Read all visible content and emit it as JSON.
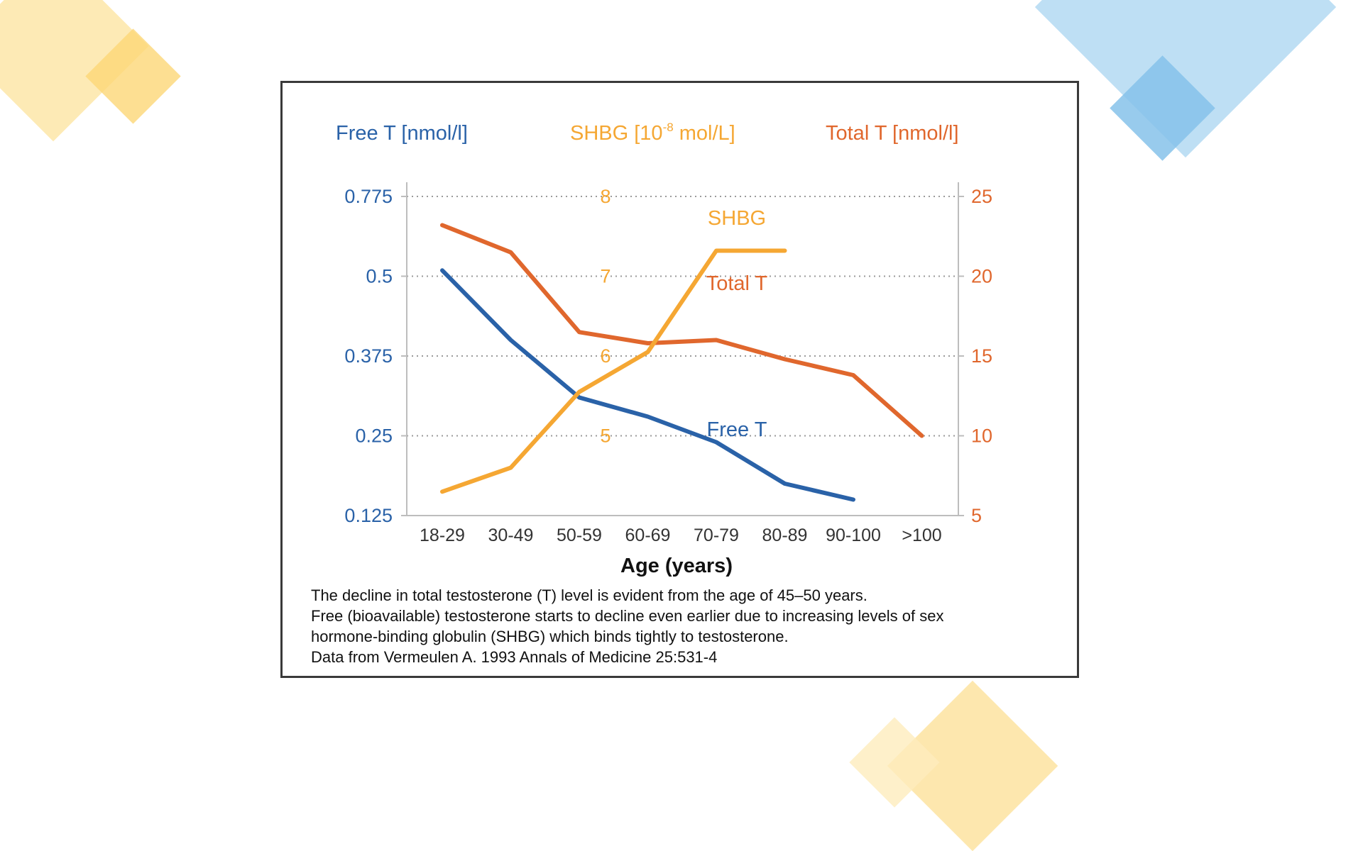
{
  "colors": {
    "free_t": "#2a62a8",
    "shbg": "#f5a733",
    "total_t": "#e0672d",
    "deco_yellow": "#fde3a0",
    "deco_blue": "#a9d3f0"
  },
  "chart_data": {
    "type": "line",
    "categories": [
      "18-29",
      "30-49",
      "50-59",
      "60-69",
      "70-79",
      "80-89",
      "90-100",
      ">100"
    ],
    "xlabel": "Age (years)",
    "axis_headers": {
      "free_t": "Free T [nmol/l]",
      "shbg_prefix": "SHBG [10",
      "shbg_exp": "-8",
      "shbg_suffix": " mol/L]",
      "total_t": "Total T [nmol/l]"
    },
    "left_axis": {
      "ticks": [
        0.125,
        0.25,
        0.375,
        0.5,
        0.775
      ],
      "tick_labels": [
        "0.125",
        "0.25",
        "0.375",
        "0.5",
        "0.775"
      ],
      "note": "ticks are equally spaced on the printed scale"
    },
    "middle_axis": {
      "ticks": [
        5,
        6,
        7,
        8
      ],
      "tick_labels": [
        "5",
        "6",
        "7",
        "8"
      ]
    },
    "right_axis": {
      "ylim": [
        5,
        25
      ],
      "ticks": [
        5,
        10,
        15,
        20,
        25
      ],
      "tick_labels": [
        "5",
        "10",
        "15",
        "20",
        "25"
      ]
    },
    "grid": "dotted horizontal",
    "series": [
      {
        "name": "Free T",
        "axis": "left",
        "values": [
          0.52,
          0.4,
          0.31,
          0.28,
          0.24,
          0.175,
          0.15,
          null
        ]
      },
      {
        "name": "SHBG",
        "axis": "middle",
        "values": [
          4.3,
          4.6,
          5.55,
          6.05,
          7.32,
          7.32,
          null,
          null
        ]
      },
      {
        "name": "Total T",
        "axis": "right",
        "values": [
          23.2,
          21.5,
          16.5,
          15.8,
          16.0,
          14.8,
          13.8,
          10.0
        ]
      }
    ]
  },
  "caption": [
    "The decline in total testosterone (T) level is evident from the age of 45–50 years.",
    "Free (bioavailable) testosterone starts to decline even earlier due to increasing levels of sex",
    "hormone-binding globulin (SHBG) which binds tightly to testosterone.",
    "Data from Vermeulen A. 1993 Annals of Medicine 25:531-4"
  ]
}
